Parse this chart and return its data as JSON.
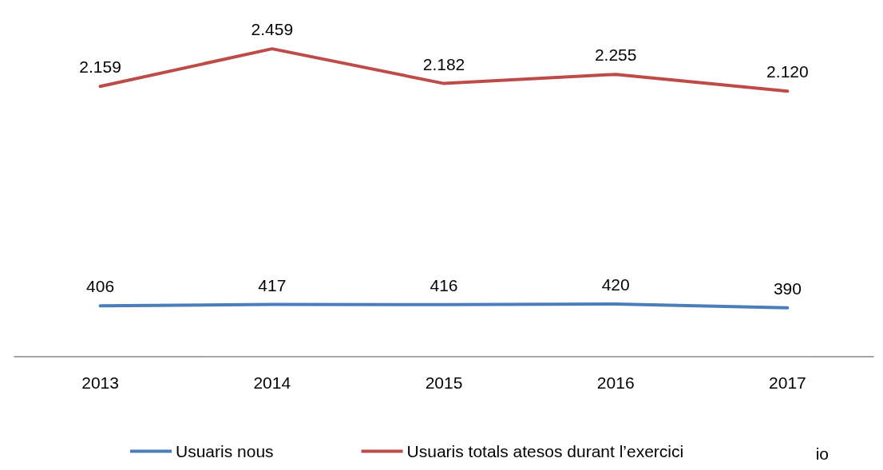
{
  "chart_data": {
    "type": "line",
    "categories": [
      "2013",
      "2014",
      "2015",
      "2016",
      "2017"
    ],
    "series": [
      {
        "name": "Usuaris nous",
        "color": "#4a7ebb",
        "values": [
          406,
          417,
          416,
          420,
          390
        ],
        "value_labels": [
          "406",
          "417",
          "416",
          "420",
          "390"
        ]
      },
      {
        "name": "Usuaris totals atesos durant l’exercici",
        "color": "#be4b48",
        "values": [
          2159,
          2459,
          2182,
          2255,
          2120
        ],
        "value_labels": [
          "2.159",
          "2.459",
          "2.182",
          "2.255",
          "2.120"
        ]
      }
    ],
    "grid": false,
    "legend": "bottom",
    "marker": "none",
    "line_style": "solid",
    "annotations": [
      "io"
    ]
  }
}
